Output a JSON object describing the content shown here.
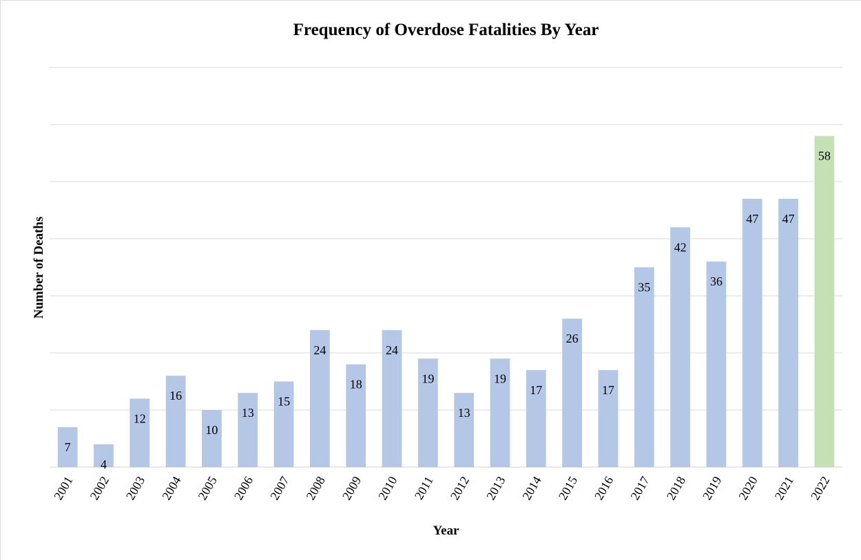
{
  "chart_data": {
    "type": "bar",
    "title": "Frequency of Overdose Fatalities By Year",
    "xlabel": "Year",
    "ylabel": "Number of Deaths",
    "categories": [
      "2001",
      "2002",
      "2003",
      "2004",
      "2005",
      "2006",
      "2007",
      "2008",
      "2009",
      "2010",
      "2011",
      "2012",
      "2013",
      "2014",
      "2015",
      "2016",
      "2017",
      "2018",
      "2019",
      "2020",
      "2021",
      "2022"
    ],
    "values": [
      7,
      4,
      12,
      16,
      10,
      13,
      15,
      24,
      18,
      24,
      19,
      13,
      19,
      17,
      26,
      17,
      35,
      42,
      36,
      47,
      47,
      58
    ],
    "ylim": [
      0,
      70
    ],
    "grid": true,
    "legend": "none",
    "data_labels": true,
    "colors": {
      "bar": "#b4c7e7",
      "highlight": "#c5e0b4",
      "grid": "#d9d9d9"
    },
    "highlight_categories": [
      "2022"
    ]
  }
}
